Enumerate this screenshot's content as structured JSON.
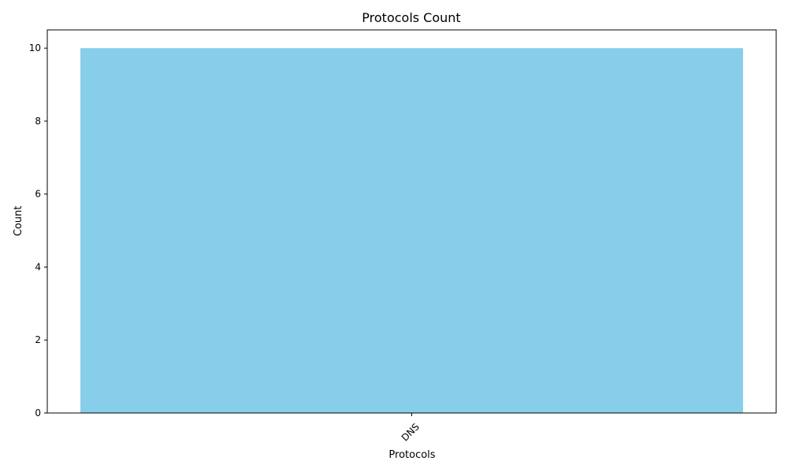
{
  "chart_data": {
    "type": "bar",
    "title": "Protocols Count",
    "xlabel": "Protocols",
    "ylabel": "Count",
    "categories": [
      "DNS"
    ],
    "values": [
      10
    ],
    "ylim": [
      0,
      10.5
    ],
    "yticks": [
      0,
      2,
      4,
      6,
      8,
      10
    ],
    "bar_color": "#87CEEB",
    "grid": false,
    "legend": "none",
    "x_tick_rotation_deg": 45
  }
}
